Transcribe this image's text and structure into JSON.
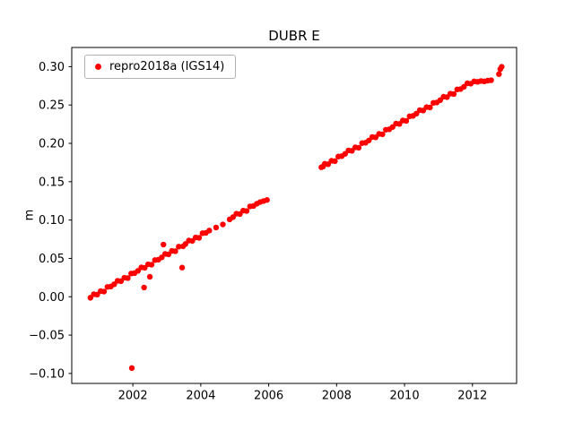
{
  "figure": {
    "background_color": "#ffffff",
    "accent_color": "#ff0000"
  },
  "chart_data": {
    "type": "scatter",
    "title": "DUBR E",
    "xlabel": "",
    "ylabel": "m",
    "legend_label": "repro2018a (IGS14)",
    "legend_position": "upper left",
    "grid": false,
    "xlim": [
      2000.2,
      2013.3
    ],
    "ylim": [
      -0.113,
      0.325
    ],
    "xticks": [
      2002,
      2004,
      2006,
      2008,
      2010,
      2012
    ],
    "xtick_labels": [
      "2002",
      "2004",
      "2006",
      "2008",
      "2010",
      "2012"
    ],
    "yticks": [
      -0.1,
      -0.05,
      0.0,
      0.05,
      0.1,
      0.15,
      0.2,
      0.25,
      0.3
    ],
    "ytick_labels": [
      "−0.10",
      "−0.05",
      "0.00",
      "0.05",
      "0.10",
      "0.15",
      "0.20",
      "0.25",
      "0.30"
    ],
    "series": [
      {
        "name": "repro2018a (IGS14)",
        "color": "#ff0000",
        "marker": "dot",
        "marker_radius": 3.2,
        "points": [
          [
            2000.75,
            -0.0013
          ],
          [
            2000.85,
            0.0033
          ],
          [
            2000.95,
            0.0028
          ],
          [
            2001.05,
            0.0073
          ],
          [
            2001.15,
            0.0068
          ],
          [
            2001.25,
            0.0128
          ],
          [
            2001.35,
            0.0133
          ],
          [
            2001.45,
            0.0163
          ],
          [
            2001.55,
            0.0208
          ],
          [
            2001.65,
            0.0203
          ],
          [
            2001.75,
            0.0248
          ],
          [
            2001.85,
            0.0243
          ],
          [
            2001.95,
            0.0303
          ],
          [
            2001.97,
            -0.093
          ],
          [
            2002.05,
            0.0308
          ],
          [
            2002.15,
            0.0338
          ],
          [
            2002.25,
            0.0383
          ],
          [
            2002.33,
            0.012
          ],
          [
            2002.35,
            0.0378
          ],
          [
            2002.45,
            0.0423
          ],
          [
            2002.5,
            0.026
          ],
          [
            2002.55,
            0.0418
          ],
          [
            2002.65,
            0.0478
          ],
          [
            2002.75,
            0.0483
          ],
          [
            2002.85,
            0.0513
          ],
          [
            2002.9,
            0.068
          ],
          [
            2002.95,
            0.0558
          ],
          [
            2003.05,
            0.0553
          ],
          [
            2003.15,
            0.0598
          ],
          [
            2003.25,
            0.0593
          ],
          [
            2003.35,
            0.0653
          ],
          [
            2003.45,
            0.038
          ],
          [
            2003.48,
            0.0658
          ],
          [
            2003.55,
            0.0688
          ],
          [
            2003.65,
            0.0733
          ],
          [
            2003.75,
            0.0728
          ],
          [
            2003.85,
            0.0773
          ],
          [
            2003.95,
            0.0768
          ],
          [
            2004.05,
            0.0828
          ],
          [
            2004.15,
            0.0833
          ],
          [
            2004.25,
            0.0863
          ],
          [
            2004.45,
            0.0903
          ],
          [
            2004.65,
            0.0943
          ],
          [
            2004.85,
            0.1008
          ],
          [
            2004.95,
            0.1038
          ],
          [
            2005.05,
            0.1083
          ],
          [
            2005.15,
            0.1078
          ],
          [
            2005.25,
            0.1123
          ],
          [
            2005.35,
            0.1118
          ],
          [
            2005.45,
            0.1178
          ],
          [
            2005.55,
            0.1183
          ],
          [
            2005.65,
            0.1213
          ],
          [
            2005.75,
            0.1235
          ],
          [
            2005.85,
            0.1248
          ],
          [
            2005.95,
            0.1262
          ],
          [
            2007.55,
            0.1688
          ],
          [
            2007.6,
            0.1698
          ],
          [
            2007.65,
            0.1733
          ],
          [
            2007.75,
            0.1728
          ],
          [
            2007.85,
            0.1773
          ],
          [
            2007.95,
            0.1768
          ],
          [
            2008.05,
            0.1828
          ],
          [
            2008.15,
            0.1833
          ],
          [
            2008.25,
            0.1863
          ],
          [
            2008.35,
            0.1908
          ],
          [
            2008.45,
            0.1903
          ],
          [
            2008.55,
            0.1948
          ],
          [
            2008.65,
            0.1943
          ],
          [
            2008.75,
            0.2003
          ],
          [
            2008.85,
            0.2008
          ],
          [
            2008.95,
            0.2038
          ],
          [
            2009.05,
            0.2083
          ],
          [
            2009.15,
            0.2078
          ],
          [
            2009.25,
            0.2123
          ],
          [
            2009.35,
            0.2118
          ],
          [
            2009.45,
            0.2178
          ],
          [
            2009.55,
            0.2183
          ],
          [
            2009.65,
            0.2213
          ],
          [
            2009.75,
            0.2258
          ],
          [
            2009.85,
            0.2253
          ],
          [
            2009.95,
            0.2298
          ],
          [
            2010.05,
            0.2293
          ],
          [
            2010.15,
            0.2353
          ],
          [
            2010.25,
            0.2358
          ],
          [
            2010.35,
            0.2388
          ],
          [
            2010.45,
            0.2433
          ],
          [
            2010.55,
            0.2428
          ],
          [
            2010.65,
            0.2473
          ],
          [
            2010.75,
            0.2468
          ],
          [
            2010.85,
            0.2528
          ],
          [
            2010.95,
            0.2533
          ],
          [
            2011.05,
            0.2563
          ],
          [
            2011.15,
            0.2608
          ],
          [
            2011.25,
            0.2603
          ],
          [
            2011.35,
            0.2648
          ],
          [
            2011.45,
            0.2643
          ],
          [
            2011.55,
            0.2703
          ],
          [
            2011.65,
            0.2708
          ],
          [
            2011.75,
            0.2738
          ],
          [
            2011.85,
            0.2783
          ],
          [
            2011.95,
            0.2778
          ],
          [
            2012.05,
            0.2808
          ],
          [
            2012.15,
            0.2802
          ],
          [
            2012.25,
            0.2813
          ],
          [
            2012.35,
            0.2808
          ],
          [
            2012.45,
            0.2818
          ],
          [
            2012.55,
            0.2823
          ],
          [
            2012.78,
            0.2903
          ],
          [
            2012.82,
            0.2968
          ],
          [
            2012.86,
            0.2998
          ]
        ]
      }
    ]
  }
}
